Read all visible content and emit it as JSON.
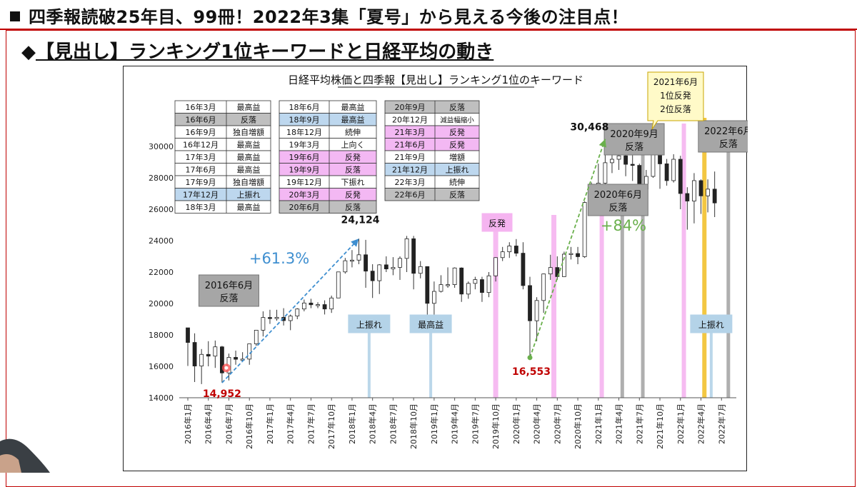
{
  "header": {
    "title": "四季報読破25年目、99冊！2022年3集「夏号」から見える今後の注目点！"
  },
  "section": {
    "marker": "◆",
    "title": "【見出し】ランキング1位キーワードと日経平均の動き"
  },
  "chart_data": {
    "type": "candlestick",
    "title": "日経平均株価と四季報【見出し】ランキング1位のキーワード",
    "ylim": [
      14000,
      31000
    ],
    "y_ticks": [
      14000,
      16000,
      18000,
      20000,
      22000,
      24000,
      26000,
      28000,
      30000
    ],
    "x_ticks": [
      "2016年1月",
      "2016年4月",
      "2016年7月",
      "2016年10月",
      "2017年1月",
      "2017年4月",
      "2017年7月",
      "2017年10月",
      "2018年1月",
      "2018年4月",
      "2018年7月",
      "2018年10月",
      "2019年1月",
      "2019年4月",
      "2019年7月",
      "2019年10月",
      "2020年1月",
      "2020年4月",
      "2020年7月",
      "2020年10月",
      "2021年1月",
      "2021年4月",
      "2021年7月",
      "2021年10月",
      "2022年1月",
      "2022年4月",
      "2022年7月"
    ],
    "candles": [
      [
        18450,
        17520,
        18450,
        16020
      ],
      [
        17520,
        16020,
        18100,
        15000
      ],
      [
        16020,
        16760,
        17100,
        14870
      ],
      [
        16760,
        16650,
        17600,
        16000
      ],
      [
        16650,
        17240,
        17640,
        15900
      ],
      [
        17240,
        15580,
        17300,
        14952
      ],
      [
        15580,
        16570,
        16810,
        15100
      ],
      [
        16570,
        16450,
        17000,
        16100
      ],
      [
        16450,
        16460,
        16900,
        16300
      ],
      [
        16460,
        17430,
        17430,
        16100
      ],
      [
        17430,
        18300,
        18300,
        17300
      ],
      [
        18300,
        19110,
        19500,
        17900
      ],
      [
        19110,
        19040,
        19600,
        18700
      ],
      [
        19040,
        19120,
        19600,
        18900
      ],
      [
        19120,
        18910,
        19700,
        18600
      ],
      [
        18910,
        19200,
        19300,
        18300
      ],
      [
        19200,
        19650,
        19700,
        19000
      ],
      [
        19650,
        20030,
        20250,
        19500
      ],
      [
        20030,
        19920,
        20300,
        19700
      ],
      [
        19920,
        19930,
        20080,
        19700
      ],
      [
        19930,
        19650,
        20200,
        19300
      ],
      [
        19650,
        20350,
        20500,
        19400
      ],
      [
        20350,
        22010,
        22010,
        20350
      ],
      [
        22010,
        22720,
        22900,
        21900
      ],
      [
        22720,
        22760,
        23400,
        22300
      ],
      [
        22760,
        23100,
        24124,
        22500
      ],
      [
        23100,
        22060,
        24050,
        21000
      ],
      [
        22060,
        21450,
        22500,
        20350
      ],
      [
        21450,
        22460,
        22500,
        20600
      ],
      [
        22460,
        22200,
        23000,
        22000
      ],
      [
        22200,
        22300,
        22950,
        21800
      ],
      [
        22300,
        22870,
        23000,
        21500
      ],
      [
        22870,
        24120,
        24300,
        22000
      ],
      [
        24120,
        21920,
        24300,
        20900
      ],
      [
        21920,
        22350,
        22700,
        21600
      ],
      [
        22350,
        20010,
        22350,
        18900
      ],
      [
        20010,
        20770,
        21400,
        19250
      ],
      [
        20770,
        21200,
        21800,
        20700
      ],
      [
        21200,
        21200,
        22300,
        21000
      ],
      [
        21200,
        22260,
        22300,
        21000
      ],
      [
        22260,
        20600,
        22300,
        20100
      ],
      [
        20600,
        21280,
        21400,
        20300
      ],
      [
        21280,
        21520,
        21700,
        20900
      ],
      [
        21520,
        20700,
        21700,
        20100
      ],
      [
        20700,
        21760,
        22000,
        20400
      ],
      [
        21760,
        22920,
        22950,
        21400
      ],
      [
        22920,
        23290,
        23600,
        22700
      ],
      [
        23290,
        23660,
        23900,
        22900
      ],
      [
        23660,
        23200,
        24100,
        23000
      ],
      [
        23200,
        21140,
        23900,
        20900
      ],
      [
        21140,
        18900,
        21700,
        16553
      ],
      [
        18900,
        20190,
        20400,
        17600
      ],
      [
        20190,
        21880,
        21900,
        19400
      ],
      [
        21880,
        22290,
        23100,
        21500
      ],
      [
        22290,
        21710,
        23000,
        21500
      ],
      [
        21710,
        23140,
        23300,
        21700
      ],
      [
        23140,
        23180,
        23600,
        22800
      ],
      [
        23180,
        22980,
        23600,
        22500
      ],
      [
        22980,
        26430,
        26500,
        22900
      ],
      [
        26430,
        27440,
        27700,
        25800
      ],
      [
        27440,
        27660,
        28900,
        27000
      ],
      [
        27660,
        28960,
        30468,
        27500
      ],
      [
        28960,
        29180,
        29650,
        28300
      ],
      [
        29180,
        29400,
        29500,
        28500
      ],
      [
        29400,
        28860,
        30000,
        28100
      ],
      [
        28860,
        28790,
        29500,
        27800
      ],
      [
        28790,
        27280,
        28900,
        26900
      ],
      [
        27280,
        28090,
        28500,
        27000
      ],
      [
        28090,
        29450,
        30600,
        28000
      ],
      [
        29450,
        28890,
        29500,
        27300
      ],
      [
        28890,
        27820,
        29200,
        27500
      ],
      [
        27820,
        29180,
        29500,
        27700
      ],
      [
        29180,
        27000,
        29400,
        26000
      ],
      [
        27000,
        26520,
        27400,
        24700
      ],
      [
        26520,
        27820,
        28300,
        25100
      ],
      [
        27820,
        26850,
        27900,
        25700
      ],
      [
        26850,
        27280,
        27900,
        25800
      ],
      [
        27280,
        26400,
        28400,
        25500
      ]
    ],
    "tables": [
      [
        [
          "16年3月",
          "最高益",
          ""
        ],
        [
          "16年6月",
          "反落",
          "gray"
        ],
        [
          "16年9月",
          "独自増額",
          ""
        ],
        [
          "16年12月",
          "最高益",
          ""
        ],
        [
          "17年3月",
          "最高益",
          ""
        ],
        [
          "17年6月",
          "最高益",
          ""
        ],
        [
          "17年9月",
          "独自増額",
          ""
        ],
        [
          "17年12月",
          "上振れ",
          "blue"
        ],
        [
          "18年3月",
          "最高益",
          ""
        ]
      ],
      [
        [
          "18年6月",
          "最高益",
          ""
        ],
        [
          "18年9月",
          "最高益",
          "blue"
        ],
        [
          "18年12月",
          "続伸",
          ""
        ],
        [
          "19年3月",
          "上向く",
          ""
        ],
        [
          "19年6月",
          "反発",
          "pink"
        ],
        [
          "19年9月",
          "反落",
          "pink"
        ],
        [
          "19年12月",
          "下振れ",
          ""
        ],
        [
          "20年3月",
          "反発",
          "pink"
        ],
        [
          "20年6月",
          "反落",
          "gray"
        ]
      ],
      [
        [
          "20年9月",
          "反落",
          "gray"
        ],
        [
          "20年12月",
          "減益幅縮小",
          ""
        ],
        [
          "21年3月",
          "反発",
          "pink"
        ],
        [
          "21年6月",
          "反発",
          "pink"
        ],
        [
          "21年9月",
          "増額",
          ""
        ],
        [
          "21年12月",
          "上振れ",
          "blue"
        ],
        [
          "22年3月",
          "続伸",
          ""
        ],
        [
          "22年6月",
          "反落",
          "gray"
        ]
      ]
    ],
    "annotations": {
      "callout_2016_6": "2016年6月\n反落",
      "callout_2020_9": "2020年9月\n反落",
      "callout_2020_6": "2020年6月\n反落",
      "callout_2022_6": "2022年6月\n反落",
      "callout_2021_6": "2021年6月\n1位反発\n2位反落",
      "label_uwabure_1": "上振れ",
      "label_saikoueki": "最高益",
      "label_hanpatsu": "反発",
      "label_uwabure_2": "上振れ",
      "pct_1": "+61.3%",
      "pct_2": "+84%",
      "val_low_1": "14,952",
      "val_high_1": "24,124",
      "val_low_2": "16,553",
      "val_high_2": "30,468"
    }
  },
  "colors": {
    "accent_red": "#c00000",
    "gray_callout": "#a6a6a6",
    "blue_band": "#b4d3e8",
    "pink_band": "#f5b4f0",
    "gold_band": "#f2c12e",
    "blue_arrow": "#3f8fd0",
    "green_arrow": "#6ab04c",
    "gray_row": "#bfbfbf",
    "blue_row": "#bdd7ee",
    "pink_row": "#f3b8f3"
  }
}
